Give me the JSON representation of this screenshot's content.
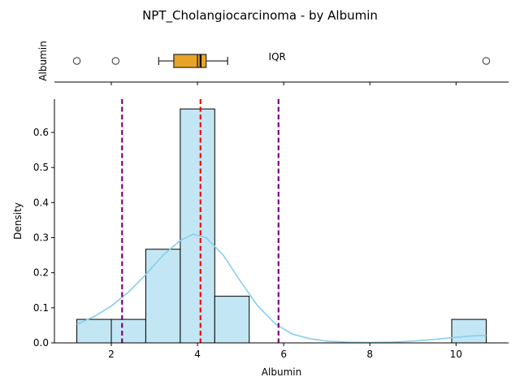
{
  "figure": {
    "title": "NPT_Cholangiocarcinoma - by Albumin"
  },
  "colors": {
    "bar_fill": "#c3e6f4",
    "bar_edge": "#000000",
    "kde_line": "#87ceeb",
    "box_fill": "#e8a427",
    "mean_line": "#ff0000",
    "bound_line": "#800080",
    "axis": "#000000"
  },
  "chart_data": [
    {
      "type": "box",
      "ylabel": "Albumin",
      "annotation": "IQR",
      "annotation_x": 5.85,
      "xlim": [
        0.68,
        11.22
      ],
      "whisker_low": 3.1,
      "q1": 3.45,
      "median": 4.0,
      "mean_marker": 4.07,
      "q3": 4.2,
      "whisker_high": 4.7,
      "outliers": [
        1.2,
        2.1,
        10.7
      ]
    },
    {
      "type": "histogram",
      "xlabel": "Albumin",
      "ylabel": "Density",
      "xlim": [
        0.68,
        11.22
      ],
      "ylim": [
        0,
        0.695
      ],
      "x_ticks": [
        2,
        4,
        6,
        8,
        10
      ],
      "y_ticks": [
        0.0,
        0.1,
        0.2,
        0.3,
        0.4,
        0.5,
        0.6
      ],
      "x_tick_labels": [
        "2",
        "4",
        "6",
        "8",
        "10"
      ],
      "y_tick_labels": [
        "0.0",
        "0.1",
        "0.2",
        "0.3",
        "0.4",
        "0.5",
        "0.6"
      ],
      "bins": [
        {
          "x0": 1.2,
          "x1": 2.0,
          "density": 0.067
        },
        {
          "x0": 2.0,
          "x1": 2.8,
          "density": 0.067
        },
        {
          "x0": 2.8,
          "x1": 3.6,
          "density": 0.267
        },
        {
          "x0": 3.6,
          "x1": 4.4,
          "density": 0.667
        },
        {
          "x0": 4.4,
          "x1": 5.2,
          "density": 0.133
        },
        {
          "x0": 9.9,
          "x1": 10.7,
          "density": 0.067
        }
      ],
      "kde": {
        "x": [
          1.2,
          1.6,
          2.0,
          2.4,
          2.8,
          3.2,
          3.6,
          3.9,
          4.2,
          4.6,
          5.0,
          5.4,
          5.8,
          6.2,
          6.6,
          7.0,
          7.5,
          8.0,
          8.5,
          9.0,
          9.5,
          10.0,
          10.4,
          10.7
        ],
        "y": [
          0.053,
          0.075,
          0.105,
          0.145,
          0.195,
          0.25,
          0.292,
          0.31,
          0.3,
          0.25,
          0.175,
          0.105,
          0.055,
          0.025,
          0.012,
          0.005,
          0.002,
          0.001,
          0.002,
          0.005,
          0.01,
          0.016,
          0.02,
          0.021
        ]
      },
      "vlines": [
        {
          "kind": "lower-bound",
          "x": 2.25,
          "style": "dashed",
          "color": "#800080"
        },
        {
          "kind": "mean",
          "x": 4.07,
          "style": "dashed",
          "color": "#ff0000"
        },
        {
          "kind": "upper-bound",
          "x": 5.88,
          "style": "dashed",
          "color": "#800080"
        }
      ]
    }
  ]
}
